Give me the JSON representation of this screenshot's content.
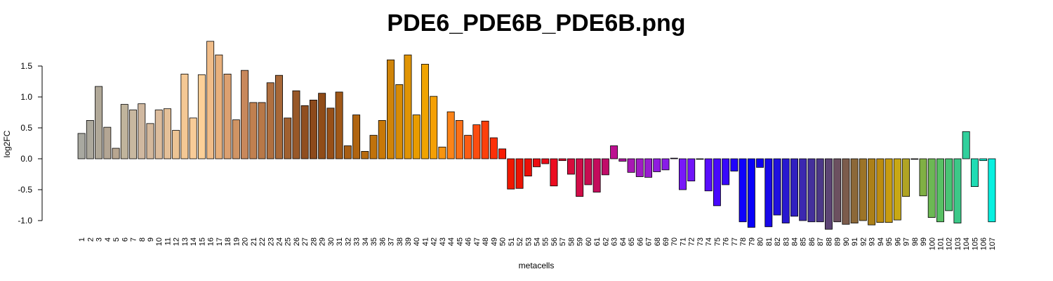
{
  "chart_data": {
    "type": "bar",
    "title": "PDE6_PDE6B_PDE6B.png",
    "xlabel": "metacells",
    "ylabel": "log2FC",
    "yticks": [
      -1.0,
      -0.5,
      0.0,
      0.5,
      1.0,
      1.5
    ],
    "ytick_labels": [
      "-1.0",
      "-0.5",
      "0.0",
      "0.5",
      "1.0",
      "1.5"
    ],
    "ylim": [
      -1.15,
      1.9
    ],
    "grid": false,
    "categories": [
      "1",
      "2",
      "3",
      "4",
      "5",
      "6",
      "7",
      "8",
      "9",
      "10",
      "11",
      "12",
      "13",
      "14",
      "15",
      "16",
      "17",
      "18",
      "19",
      "20",
      "21",
      "22",
      "23",
      "24",
      "25",
      "26",
      "27",
      "28",
      "29",
      "30",
      "31",
      "32",
      "33",
      "34",
      "35",
      "36",
      "37",
      "38",
      "39",
      "40",
      "41",
      "42",
      "43",
      "44",
      "45",
      "46",
      "47",
      "48",
      "49",
      "50",
      "51",
      "52",
      "53",
      "54",
      "55",
      "56",
      "57",
      "58",
      "59",
      "60",
      "61",
      "62",
      "63",
      "64",
      "65",
      "66",
      "67",
      "68",
      "69",
      "70",
      "71",
      "72",
      "73",
      "74",
      "75",
      "76",
      "77",
      "78",
      "79",
      "80",
      "81",
      "82",
      "83",
      "84",
      "85",
      "86",
      "87",
      "88",
      "89",
      "90",
      "91",
      "92",
      "93",
      "94",
      "95",
      "96",
      "97",
      "98",
      "99",
      "100",
      "101",
      "102",
      "103",
      "104",
      "105",
      "106",
      "107"
    ],
    "values": [
      0.41,
      0.62,
      1.17,
      0.51,
      0.17,
      0.88,
      0.79,
      0.89,
      0.57,
      0.79,
      0.81,
      0.46,
      1.37,
      0.66,
      1.36,
      1.9,
      1.68,
      1.37,
      0.63,
      1.43,
      0.91,
      0.91,
      1.23,
      1.35,
      0.66,
      1.1,
      0.86,
      0.95,
      1.06,
      0.82,
      1.08,
      0.21,
      0.71,
      0.12,
      0.38,
      0.62,
      1.6,
      1.2,
      1.68,
      0.71,
      1.53,
      1.01,
      0.19,
      0.76,
      0.62,
      0.38,
      0.55,
      0.61,
      0.34,
      0.16,
      -0.49,
      -0.48,
      -0.28,
      -0.13,
      -0.08,
      -0.44,
      -0.03,
      -0.25,
      -0.61,
      -0.42,
      -0.54,
      -0.26,
      0.21,
      -0.04,
      -0.22,
      -0.29,
      -0.3,
      -0.21,
      -0.18,
      0.01,
      -0.5,
      -0.36,
      0.0,
      -0.52,
      -0.76,
      -0.42,
      -0.2,
      -1.02,
      -1.11,
      -0.14,
      -1.1,
      -0.91,
      -1.04,
      -0.93,
      -1.0,
      -1.02,
      -1.02,
      -1.14,
      -1.02,
      -1.06,
      -1.04,
      -1.0,
      -1.07,
      -1.03,
      -1.03,
      -0.99,
      -0.61,
      0.0,
      -0.6,
      -0.95,
      -1.02,
      -0.84,
      -1.04,
      0.44,
      -0.45,
      -0.03,
      -1.02
    ],
    "colors": [
      "#a8a8a0",
      "#aca89c",
      "#b0a898",
      "#b4a694",
      "#b8a690",
      "#c0b49c",
      "#c8b8a0",
      "#d0b8a0",
      "#d4b89c",
      "#dcbc9c",
      "#e4c098",
      "#ecc494",
      "#f4c894",
      "#f8cc98",
      "#fcd098",
      "#f0bc88",
      "#e8b07c",
      "#dca070",
      "#d09464",
      "#c8885c",
      "#c08050",
      "#b87848",
      "#b07040",
      "#a86838",
      "#a06030",
      "#985828",
      "#904e20",
      "#8c4a1c",
      "#904c18",
      "#985018",
      "#a05818",
      "#a85e14",
      "#b06410",
      "#b86a0c",
      "#c0720c",
      "#c87808",
      "#d08408",
      "#d88c04",
      "#e09404",
      "#e89c00",
      "#f0a400",
      "#f4a004",
      "#f89410",
      "#fc8418",
      "#fc7018",
      "#fc5c14",
      "#fc4c10",
      "#fc400c",
      "#fc3008",
      "#f81c04",
      "#f01800",
      "#ec1404",
      "#ec1008",
      "#ec0c10",
      "#ec0c18",
      "#ec0c20",
      "#e00c30",
      "#d80c3c",
      "#d00c48",
      "#c80c50",
      "#c40c5c",
      "#c00c68",
      "#bc1090",
      "#b014a0",
      "#a818b4",
      "#a01cc4",
      "#981cd0",
      "#901ce0",
      "#881ce8",
      "#801cf0",
      "#7818f8",
      "#7014f8",
      "#6810fc",
      "#580cfc",
      "#4808fc",
      "#3808fc",
      "#2004fc",
      "#1000fc",
      "#0800f8",
      "#1000f0",
      "#1808e8",
      "#2010e0",
      "#2818d0",
      "#3020c0",
      "#3c28b0",
      "#44309c",
      "#4c3888",
      "#5c4474",
      "#6c5060",
      "#7c5c4c",
      "#8c6838",
      "#9c7428",
      "#ac8018",
      "#bc8c10",
      "#c89c10",
      "#c8a814",
      "#b0a424",
      "#98a834",
      "#80b044",
      "#6cb854",
      "#58c064",
      "#48c474",
      "#3cc888",
      "#30d09c",
      "#20dcb4",
      "#10e8cc",
      "#08f0e0"
    ]
  }
}
